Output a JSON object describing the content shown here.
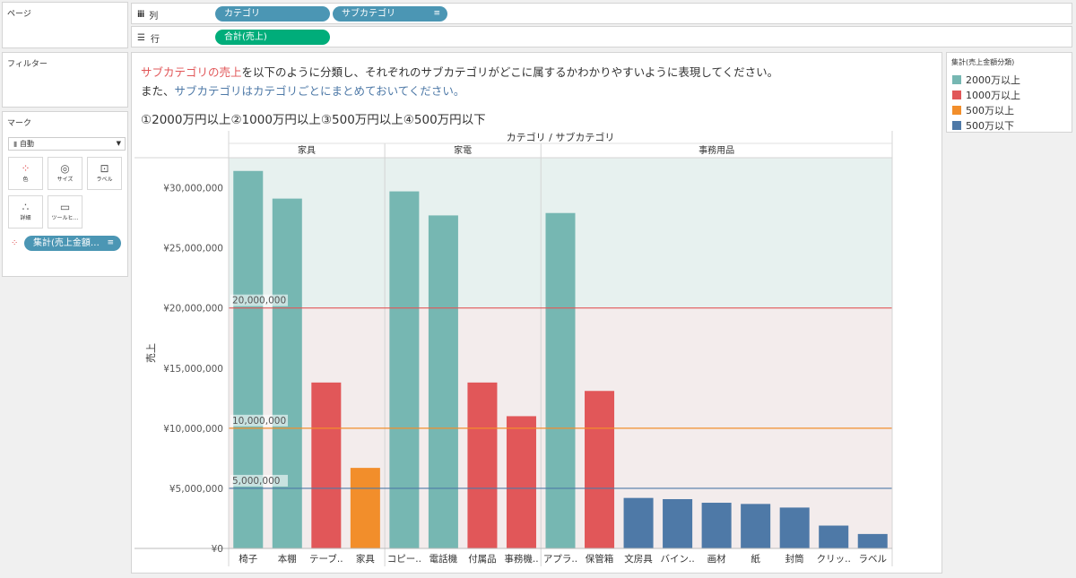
{
  "pages_panel": {
    "title": "ページ"
  },
  "filters_panel": {
    "title": "フィルター"
  },
  "marks_panel": {
    "title": "マーク",
    "mark_type": "自動",
    "buttons": [
      "色",
      "サイズ",
      "ラベル",
      "詳細",
      "ツールヒ…"
    ],
    "color_pill": "集計(売上金額…"
  },
  "shelves": {
    "columns_label": "列",
    "rows_label": "行",
    "column_pills": [
      "カテゴリ",
      "サブカテゴリ"
    ],
    "row_pills": [
      "合計(売上)"
    ]
  },
  "instructions": {
    "line1_a": "サブカテゴリの売上",
    "line1_b": "を以下のように分類し、それぞれのサブカテゴリがどこに属するかわかりやすいように表現してください。",
    "line2_a": "また、",
    "line2_b": "サブカテゴリはカテゴリごとにまとめておいてください。",
    "line3": "①2000万円以上②1000万円以上③500万円以上④500万円以下"
  },
  "legend": {
    "title": "集計(売上金額分類)",
    "items": [
      {
        "label": "2000万以上",
        "color": "#76b7b2"
      },
      {
        "label": "1000万以上",
        "color": "#e15759"
      },
      {
        "label": "500万以上",
        "color": "#f28e2b"
      },
      {
        "label": "500万以下",
        "color": "#4e79a7"
      }
    ]
  },
  "chart_data": {
    "type": "bar",
    "header_title": "カテゴリ / サブカテゴリ",
    "ylabel": "売上",
    "ylim": [
      0,
      32500000
    ],
    "yticks": [
      {
        "value": 0,
        "label": "¥0"
      },
      {
        "value": 5000000,
        "label": "¥5,000,000"
      },
      {
        "value": 10000000,
        "label": "¥10,000,000"
      },
      {
        "value": 15000000,
        "label": "¥15,000,000"
      },
      {
        "value": 20000000,
        "label": "¥20,000,000"
      },
      {
        "value": 25000000,
        "label": "¥25,000,000"
      },
      {
        "value": 30000000,
        "label": "¥30,000,000"
      }
    ],
    "reference_lines": [
      {
        "value": 20000000,
        "label": "20,000,000",
        "color": "#e15759"
      },
      {
        "value": 10000000,
        "label": "10,000,000",
        "color": "#f28e2b"
      },
      {
        "value": 5000000,
        "label": "5,000,000",
        "color": "#4e79a7"
      }
    ],
    "bands": [
      {
        "from": 20000000,
        "to": 32500000,
        "color": "#e7f1ef"
      },
      {
        "from": 0,
        "to": 20000000,
        "color": "#f3ecec"
      }
    ],
    "groups": [
      {
        "name": "家具",
        "bars": [
          {
            "label": "椅子",
            "value": 31400000,
            "color": "#76b7b2"
          },
          {
            "label": "本棚",
            "value": 29100000,
            "color": "#76b7b2"
          },
          {
            "label": "テーブ..",
            "value": 13800000,
            "color": "#e15759"
          },
          {
            "label": "家具",
            "value": 6700000,
            "color": "#f28e2b"
          }
        ]
      },
      {
        "name": "家電",
        "bars": [
          {
            "label": "コピー..",
            "value": 29700000,
            "color": "#76b7b2"
          },
          {
            "label": "電話機",
            "value": 27700000,
            "color": "#76b7b2"
          },
          {
            "label": "付属品",
            "value": 13800000,
            "color": "#e15759"
          },
          {
            "label": "事務機..",
            "value": 11000000,
            "color": "#e15759"
          }
        ]
      },
      {
        "name": "事務用品",
        "bars": [
          {
            "label": "アプラ..",
            "value": 27900000,
            "color": "#76b7b2"
          },
          {
            "label": "保管箱",
            "value": 13100000,
            "color": "#e15759"
          },
          {
            "label": "文房具",
            "value": 4200000,
            "color": "#4e79a7"
          },
          {
            "label": "バイン..",
            "value": 4100000,
            "color": "#4e79a7"
          },
          {
            "label": "画材",
            "value": 3800000,
            "color": "#4e79a7"
          },
          {
            "label": "紙",
            "value": 3700000,
            "color": "#4e79a7"
          },
          {
            "label": "封筒",
            "value": 3400000,
            "color": "#4e79a7"
          },
          {
            "label": "クリッ..",
            "value": 1900000,
            "color": "#4e79a7"
          },
          {
            "label": "ラベル",
            "value": 1200000,
            "color": "#4e79a7"
          }
        ]
      }
    ]
  }
}
